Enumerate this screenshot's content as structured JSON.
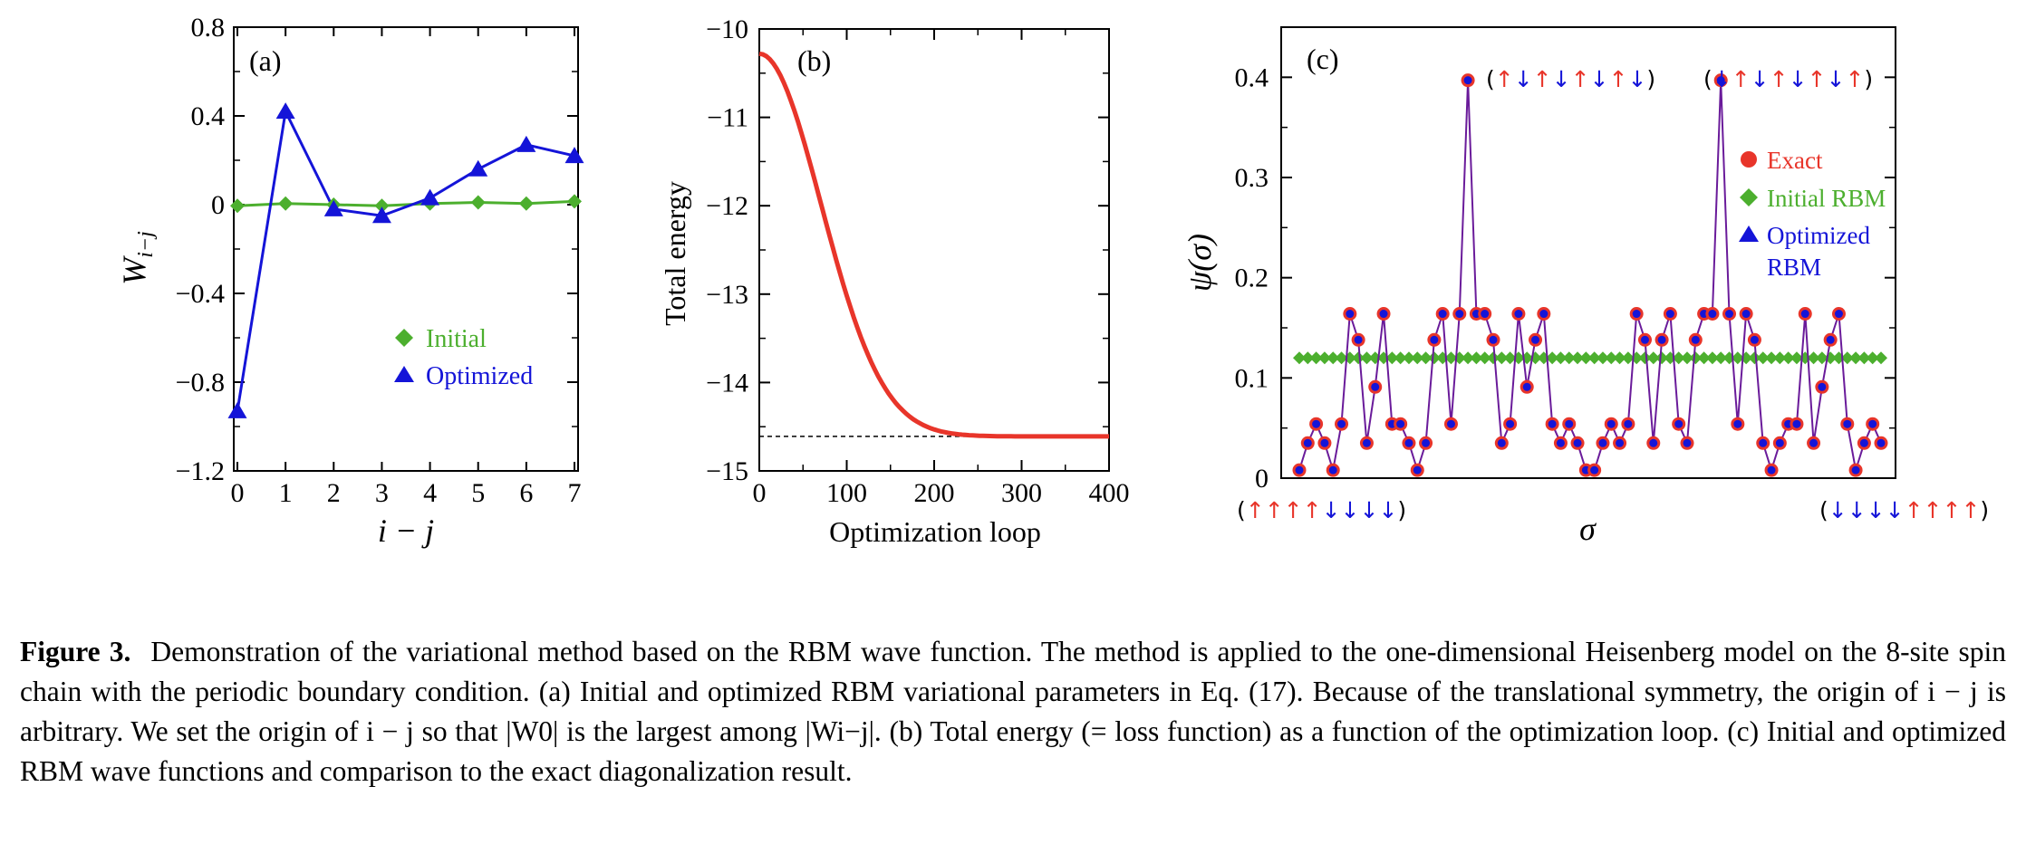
{
  "colors": {
    "exact": "#e8352a",
    "initial": "#4caf2e",
    "optimized": "#1414d8",
    "line_c": "#6a1b9a",
    "energy": "#e8352a"
  },
  "chart_data": [
    {
      "type": "line",
      "panel_label": "(a)",
      "xlabel": "i − j",
      "ylabel": "W_{i−j}",
      "xlim": [
        0,
        7
      ],
      "ylim": [
        -1.2,
        0.8
      ],
      "xticks": [
        "0",
        "1",
        "2",
        "3",
        "4",
        "5",
        "6",
        "7"
      ],
      "yticks": [
        "0.8",
        "0.4",
        "0",
        "−0.4",
        "−0.8",
        "−1.2"
      ],
      "x": [
        0,
        1,
        2,
        3,
        4,
        5,
        6,
        7
      ],
      "series": [
        {
          "name": "Initial",
          "marker": "diamond",
          "values": [
            -0.005,
            0.005,
            0.0,
            -0.005,
            0.005,
            0.01,
            0.005,
            0.015
          ]
        },
        {
          "name": "Optimized",
          "marker": "triangle",
          "values": [
            -0.93,
            0.42,
            -0.02,
            -0.05,
            0.03,
            0.16,
            0.27,
            0.22
          ]
        }
      ],
      "legend": [
        "Initial",
        "Optimized"
      ]
    },
    {
      "type": "line",
      "panel_label": "(b)",
      "xlabel": "Optimization loop",
      "ylabel": "Total energy",
      "xlim": [
        0,
        400
      ],
      "ylim": [
        -15,
        -10
      ],
      "xticks": [
        "0",
        "100",
        "200",
        "300",
        "400"
      ],
      "yticks": [
        "−10",
        "−11",
        "−12",
        "−13",
        "−14",
        "−15"
      ],
      "series": [
        {
          "name": "Total energy",
          "start": -10.28,
          "end": -14.61
        }
      ],
      "reference_line": -14.61
    },
    {
      "type": "scatter",
      "panel_label": "(c)",
      "xlabel": "σ",
      "ylabel": "ψ(σ)",
      "ylim": [
        0,
        0.45
      ],
      "yticks": [
        "0.4",
        "0.3",
        "0.2",
        "0.1",
        "0"
      ],
      "n_points": 70,
      "initial_value": 0.12,
      "series": [
        {
          "name": "Exact",
          "marker": "circle",
          "values": [
            0.008,
            0.035,
            0.054,
            0.035,
            0.008,
            0.054,
            0.164,
            0.138,
            0.035,
            0.091,
            0.164,
            0.054,
            0.054,
            0.035,
            0.008,
            0.035,
            0.138,
            0.164,
            0.054,
            0.164,
            0.397,
            0.164,
            0.164,
            0.138,
            0.035,
            0.054,
            0.164,
            0.091,
            0.138,
            0.164,
            0.054,
            0.035,
            0.054,
            0.035,
            0.008,
            0.008,
            0.035,
            0.054,
            0.035,
            0.054,
            0.164,
            0.138,
            0.035,
            0.138,
            0.164,
            0.054,
            0.035,
            0.138,
            0.164,
            0.164,
            0.397,
            0.164,
            0.054,
            0.164,
            0.138,
            0.035,
            0.008,
            0.035,
            0.054,
            0.054,
            0.164,
            0.035,
            0.091,
            0.138,
            0.164,
            0.054,
            0.008,
            0.035,
            0.054,
            0.035
          ]
        },
        {
          "name": "Initial RBM",
          "marker": "diamond"
        },
        {
          "name": "Optimized RBM",
          "marker": "triangle"
        }
      ],
      "legend": [
        "Exact",
        "Initial RBM",
        "Optimized",
        "RBM"
      ],
      "annotations": {
        "peak1": [
          "(",
          "↑↓↑↓↑↓↑↓",
          ")"
        ],
        "peak2": [
          "(",
          "↓↑↓↑↓↑↓↑",
          ")"
        ],
        "left": [
          "(",
          "↑↑↑↑↓↓↓↓",
          ")"
        ],
        "right": [
          "(",
          "↓↓↓↓↑↑↑↑",
          ")"
        ]
      }
    }
  ],
  "caption": {
    "label": "Figure 3.",
    "text": "Demonstration of the variational method based on the RBM wave function. The method is applied to the one-dimensional Heisenberg model on the 8-site spin chain with the periodic boundary condition. (a) Initial and optimized RBM variational parameters in Eq. (17). Because of the translational symmetry, the origin of i − j is arbitrary. We set the origin of i − j so that |W0| is the largest among |Wi−j|. (b) Total energy (= loss function) as a function of the optimization loop. (c) Initial and optimized RBM wave functions and comparison to the exact diagonalization result."
  }
}
